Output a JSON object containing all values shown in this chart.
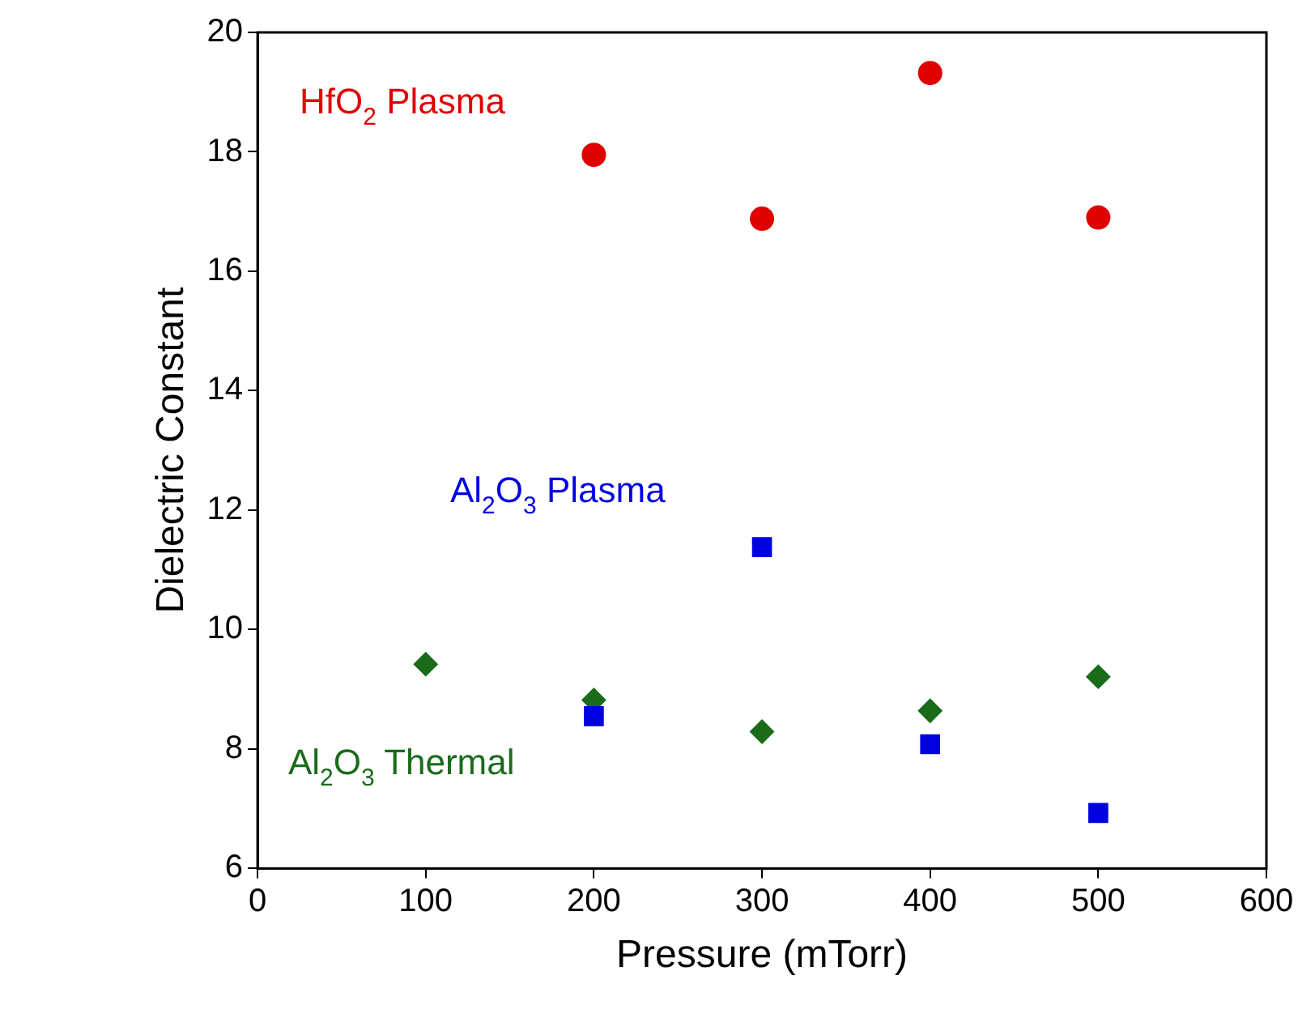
{
  "chart_data": {
    "type": "scatter",
    "xlabel": "Pressure (mTorr)",
    "ylabel": "Dielectric Constant",
    "xlim": [
      0,
      600
    ],
    "xticks": [
      0,
      100,
      200,
      300,
      400,
      500,
      600
    ],
    "ylim": [
      6,
      20
    ],
    "yticks": [
      6,
      8,
      10,
      12,
      14,
      16,
      18,
      20
    ],
    "grid": false,
    "legend": false,
    "series": [
      {
        "name": "HfO$_{2}$ Plasma",
        "color": "#e00000",
        "marker": "circle",
        "x": [
          200,
          300,
          400,
          500
        ],
        "values": [
          17.95,
          16.88,
          19.32,
          16.9
        ]
      },
      {
        "name": "Al$_{2}$O$_{3}$ Plasma",
        "color": "#0000e0",
        "marker": "square",
        "x": [
          200,
          300,
          400,
          500
        ],
        "values": [
          8.55,
          11.38,
          8.08,
          6.93
        ]
      },
      {
        "name": "Al$_{2}$O$_{3}$ Thermal",
        "color": "#1a6b1a",
        "marker": "diamond",
        "x": [
          100,
          200,
          300,
          400,
          500
        ],
        "values": [
          9.42,
          8.82,
          8.29,
          8.64,
          9.21
        ]
      }
    ]
  }
}
